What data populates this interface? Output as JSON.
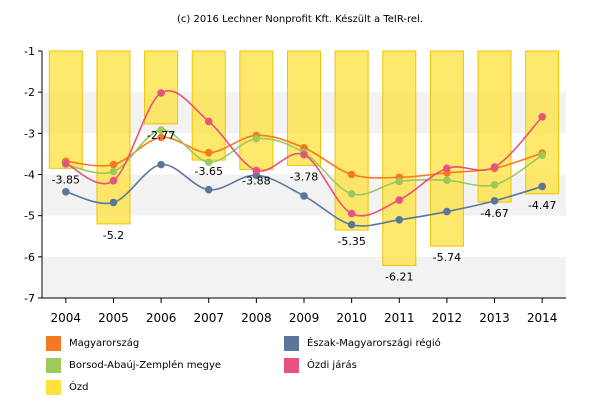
{
  "chart_data": {
    "type": "line",
    "title": "(c) 2016 Lechner Nonprofit Kft. Készült a TeIR-rel.",
    "categories": [
      "2004",
      "2005",
      "2006",
      "2007",
      "2008",
      "2009",
      "2010",
      "2011",
      "2012",
      "2013",
      "2014"
    ],
    "ylim": [
      -7,
      -1
    ],
    "yticks": [
      -1,
      -2,
      -3,
      -4,
      -5,
      -6,
      -7
    ],
    "grid": "horizontal bands",
    "legend_position": "bottom",
    "bar_series": {
      "name": "Ózd",
      "color": "#fde23b",
      "values": [
        -3.85,
        -5.2,
        -2.77,
        -3.65,
        -3.88,
        -3.78,
        -5.35,
        -6.21,
        -5.74,
        -4.67,
        -4.47
      ],
      "labels": [
        "-3.85",
        "-5.2",
        "-2.77",
        "-3.65",
        "-3.88",
        "-3.78",
        "-5.35",
        "-6.21",
        "-5.74",
        "-4.67",
        "-4.47"
      ]
    },
    "series": [
      {
        "name": "Magyarország",
        "color": "#f47a20",
        "values": [
          -3.68,
          -3.76,
          -3.1,
          -3.47,
          -3.05,
          -3.35,
          -4.0,
          -4.07,
          -3.96,
          -3.85,
          -3.48
        ]
      },
      {
        "name": "Borsod-Abaúj-Zemplén megye",
        "color": "#9dc85a",
        "values": [
          -3.76,
          -3.93,
          -2.92,
          -3.7,
          -3.13,
          -3.47,
          -4.47,
          -4.17,
          -4.14,
          -4.25,
          -3.53
        ]
      },
      {
        "name": "Észak-Magyarországi régió",
        "color": "#5a7799",
        "values": [
          -4.42,
          -4.68,
          -3.76,
          -4.37,
          -4.02,
          -4.52,
          -5.22,
          -5.1,
          -4.9,
          -4.64,
          -4.29
        ]
      },
      {
        "name": "Ózdi járás",
        "color": "#e8527e",
        "values": [
          -3.73,
          -4.15,
          -2.02,
          -2.71,
          -3.9,
          -3.52,
          -4.95,
          -4.62,
          -3.85,
          -3.82,
          -2.6
        ]
      }
    ]
  },
  "legend": [
    {
      "label": "Magyarország",
      "color": "#f47a20"
    },
    {
      "label": "Észak-Magyarországi régió",
      "color": "#5a7799"
    },
    {
      "label": "Borsod-Abaúj-Zemplén megye",
      "color": "#9dc85a"
    },
    {
      "label": "Ózdi járás",
      "color": "#e8527e"
    },
    {
      "label": "Ózd",
      "color": "#fde23b"
    }
  ]
}
